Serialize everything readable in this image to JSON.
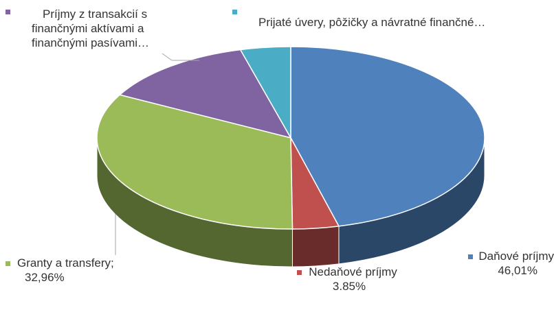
{
  "chart_data": {
    "type": "pie",
    "style": "3d",
    "title": "",
    "slices": [
      {
        "label": "Daňové príjmy",
        "value": 46.01,
        "display": "46,01%",
        "color": "#4f81bd"
      },
      {
        "label": "Nedaňové príjmy",
        "value": 3.85,
        "display": "3.85%",
        "color": "#c0504d"
      },
      {
        "label": "Granty a transfery;",
        "value": 32.96,
        "display": "32,96%",
        "color": "#9bbb59"
      },
      {
        "label": "Príjmy z transakcií s finančnými aktívami a finančnými pasívami…",
        "value": 13.0,
        "color": "#8064a2"
      },
      {
        "label": "Prijaté úvery, pôžičky a návratné finančné…",
        "value": 4.18,
        "color": "#4bacc6"
      }
    ]
  },
  "labels": {
    "dan_name": "Daňové príjmy",
    "dan_value": "46,01%",
    "ned_name": "Nedaňové príjmy",
    "ned_value": "3.85%",
    "gra_name": "Granty a transfery;",
    "gra_value": "32,96%",
    "pri_line1": "Príjmy z transakcií s",
    "pri_line2": "finančnými aktívami a",
    "pri_line3": "finančnými pasívami…",
    "uve_name": "Prijaté úvery, pôžičky a návratné finančné…"
  }
}
